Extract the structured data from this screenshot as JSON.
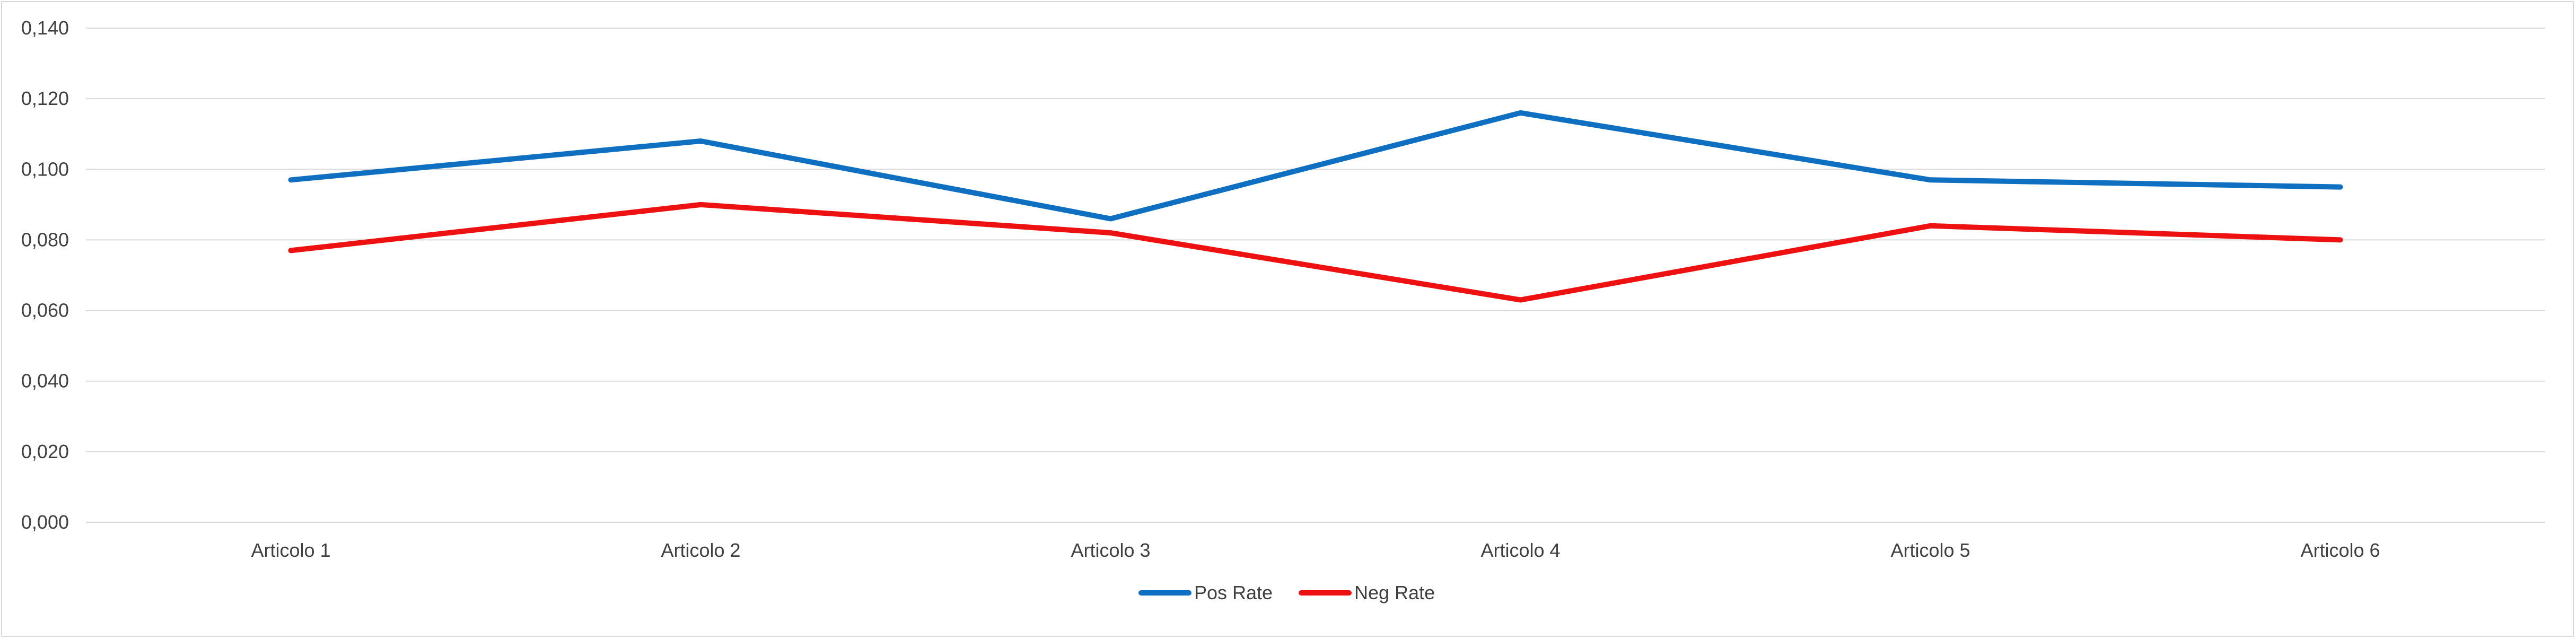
{
  "chart_data": {
    "type": "line",
    "title": "",
    "xlabel": "",
    "ylabel": "",
    "categories": [
      "Articolo 1",
      "Articolo 2",
      "Articolo 3",
      "Articolo 4",
      "Articolo 5",
      "Articolo 6"
    ],
    "series": [
      {
        "name": "Pos Rate",
        "color": "#0f6fc1",
        "values": [
          0.097,
          0.108,
          0.086,
          0.116,
          0.097,
          0.095
        ]
      },
      {
        "name": "Neg Rate",
        "color": "#ee1111",
        "values": [
          0.077,
          0.09,
          0.082,
          0.063,
          0.084,
          0.08
        ]
      }
    ],
    "ylim": [
      0,
      0.14
    ],
    "yticks": [
      "0,000",
      "0,020",
      "0,040",
      "0,060",
      "0,080",
      "0,100",
      "0,120",
      "0,140"
    ],
    "grid": true,
    "legend_position": "bottom"
  }
}
